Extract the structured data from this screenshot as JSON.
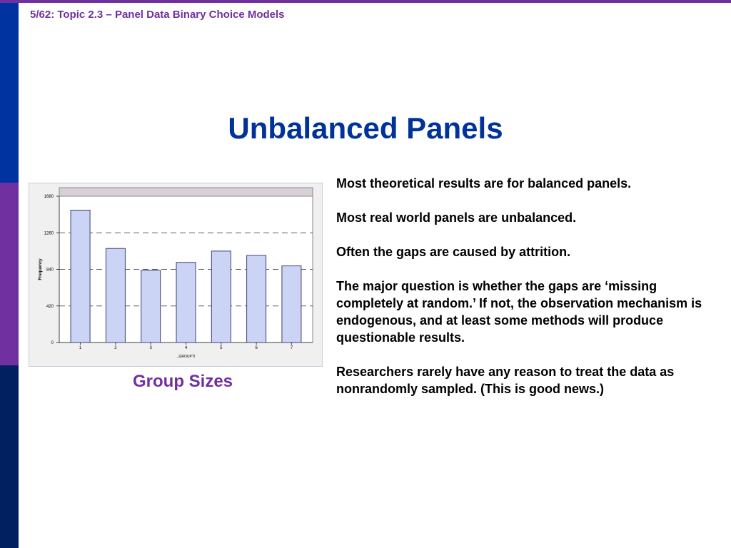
{
  "header": {
    "text": "5/62: Topic 2.3 – Panel Data Binary Choice Models"
  },
  "slide": {
    "title": "Unbalanced Panels",
    "caption": "Group Sizes",
    "bullets": [
      "Most theoretical results are for balanced panels.",
      "Most real world panels are unbalanced.",
      "Often the gaps are caused by attrition.",
      "The major question is whether the gaps are ‘missing completely at random.’  If not, the observation mechanism is endogenous, and at least some methods will produce questionable results.",
      "Researchers rarely have any reason to treat the data as nonrandomly sampled.  (This is good news.)"
    ]
  },
  "colors": {
    "accent_purple": "#7030a0",
    "accent_blue": "#003399",
    "bar_fill": "#ccd4f6",
    "bar_stroke": "#3b3f78"
  },
  "chart_data": {
    "type": "bar",
    "categories": [
      "1",
      "2",
      "3",
      "4",
      "5",
      "6",
      "7"
    ],
    "values": [
      1520,
      1080,
      830,
      920,
      1050,
      1000,
      880
    ],
    "xlabel": "_GROUPTI",
    "ylabel": "Frequency",
    "ylim": [
      0,
      1680
    ],
    "yticks": [
      0,
      420,
      840,
      1260,
      1680
    ],
    "grid": true
  }
}
